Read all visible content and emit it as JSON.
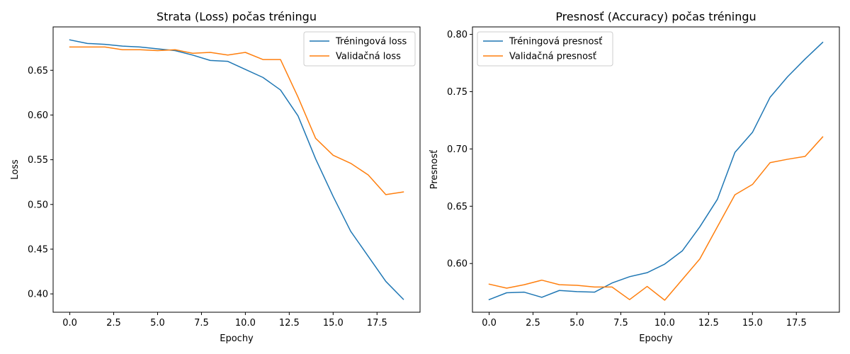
{
  "chart_data": [
    {
      "type": "line",
      "title": "Strata (Loss) počas tréningu",
      "xlabel": "Epochy",
      "ylabel": "Loss",
      "xlim": [
        -0.95,
        19.95
      ],
      "ylim": [
        0.3795,
        0.6985
      ],
      "xticks": [
        0.0,
        2.5,
        5.0,
        7.5,
        10.0,
        12.5,
        15.0,
        17.5
      ],
      "xtick_labels": [
        "0.0",
        "2.5",
        "5.0",
        "7.5",
        "10.0",
        "12.5",
        "15.0",
        "17.5"
      ],
      "yticks": [
        0.4,
        0.45,
        0.5,
        0.55,
        0.6,
        0.65
      ],
      "ytick_labels": [
        "0.40",
        "0.45",
        "0.50",
        "0.55",
        "0.60",
        "0.65"
      ],
      "legend": "top-right",
      "grid": false,
      "x": [
        0,
        1,
        2,
        3,
        4,
        5,
        6,
        7,
        8,
        9,
        10,
        11,
        12,
        13,
        14,
        15,
        16,
        17,
        18,
        19
      ],
      "series": [
        {
          "name": "Tréningová loss",
          "color": "#1f77b4",
          "values": [
            0.684,
            0.68,
            0.679,
            0.677,
            0.676,
            0.674,
            0.672,
            0.667,
            0.661,
            0.66,
            0.651,
            0.642,
            0.628,
            0.599,
            0.551,
            0.509,
            0.47,
            0.442,
            0.414,
            0.394
          ]
        },
        {
          "name": "Validačná loss",
          "color": "#ff7f0e",
          "values": [
            0.676,
            0.676,
            0.676,
            0.673,
            0.673,
            0.672,
            0.673,
            0.669,
            0.67,
            0.667,
            0.67,
            0.662,
            0.662,
            0.62,
            0.574,
            0.555,
            0.546,
            0.533,
            0.511,
            0.514
          ]
        }
      ]
    },
    {
      "type": "line",
      "title": "Presnosť (Accuracy) počas tréningu",
      "xlabel": "Epochy",
      "ylabel": "Presnosť",
      "xlim": [
        -0.95,
        19.95
      ],
      "ylim": [
        0.5575,
        0.8065
      ],
      "xticks": [
        0.0,
        2.5,
        5.0,
        7.5,
        10.0,
        12.5,
        15.0,
        17.5
      ],
      "xtick_labels": [
        "0.0",
        "2.5",
        "5.0",
        "7.5",
        "10.0",
        "12.5",
        "15.0",
        "17.5"
      ],
      "yticks": [
        0.6,
        0.65,
        0.7,
        0.75,
        0.8
      ],
      "ytick_labels": [
        "0.60",
        "0.65",
        "0.70",
        "0.75",
        "0.80"
      ],
      "legend": "top-left",
      "grid": false,
      "x": [
        0,
        1,
        2,
        3,
        4,
        5,
        6,
        7,
        8,
        9,
        10,
        11,
        12,
        13,
        14,
        15,
        16,
        17,
        18,
        19
      ],
      "series": [
        {
          "name": "Tréningová presnosť",
          "color": "#1f77b4",
          "values": [
            0.5685,
            0.5745,
            0.575,
            0.5705,
            0.5765,
            0.5755,
            0.575,
            0.583,
            0.5885,
            0.592,
            0.5995,
            0.611,
            0.632,
            0.656,
            0.697,
            0.7145,
            0.745,
            0.763,
            0.7785,
            0.793
          ]
        },
        {
          "name": "Validačná presnosť",
          "color": "#ff7f0e",
          "values": [
            0.582,
            0.5785,
            0.5815,
            0.5855,
            0.5815,
            0.581,
            0.5795,
            0.5795,
            0.5685,
            0.58,
            0.568,
            0.586,
            0.604,
            0.632,
            0.66,
            0.669,
            0.688,
            0.691,
            0.6935,
            0.7105
          ]
        }
      ]
    }
  ]
}
